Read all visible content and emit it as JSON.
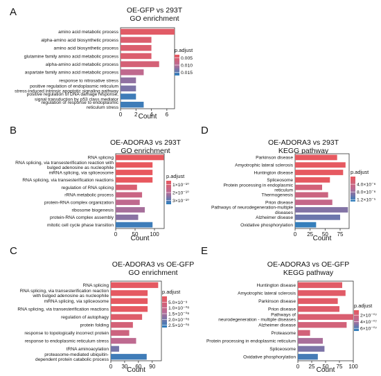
{
  "chart_data": [
    {
      "panel": "A",
      "type": "bar",
      "title": "OE-GFP vs 293T",
      "subtitle": "GO enrichment",
      "xlabel": "Count",
      "xlim": [
        0,
        7
      ],
      "xticks": [
        0,
        2,
        4,
        6
      ],
      "categories": [
        "amino acid metabolic process",
        "alpha-amino acid biosynthetic process",
        "amino acid biosynthetic process",
        "glutamine family amino acid metabolic process",
        "alpha-amino acid metabolic process",
        "aspartate family amino acid metabolic process",
        "response to nitrosative stress",
        "positive regulation of endoplasmic reticulum\nstress-induced intrinsic apoptotic signaling pathway",
        "positive regulation of DNA damage response,\nsignal transduction by p53 class mediator",
        "regulation of response to endoplasmic\nreticulum stress"
      ],
      "values": [
        7,
        4,
        4,
        4,
        5,
        3,
        2,
        2,
        2,
        3
      ],
      "padjust": [
        0.004,
        0.005,
        0.005,
        0.005,
        0.006,
        0.009,
        0.012,
        0.013,
        0.016,
        0.016
      ],
      "legend": {
        "title": "p.adjust",
        "labels": [
          "0.005",
          "0.010",
          "0.015"
        ],
        "values": [
          0.005,
          0.01,
          0.015
        ],
        "range": [
          0.003,
          0.017
        ]
      }
    },
    {
      "panel": "B",
      "type": "bar",
      "title": "OE-ADORA3 vs 293T",
      "subtitle": "GO enrichment",
      "xlabel": "Count",
      "xlim": [
        0,
        125
      ],
      "xticks": [
        0,
        50,
        100
      ],
      "categories": [
        "RNA splicing",
        "RNA splicing, via transesterification reaction with\nbulged adenosine as nucleophile",
        "mRNA splicing, via spliceosome",
        "RNA splicing, via transesterification reactions",
        "regulation of RNA splicing",
        "rRNA metabolic process",
        "protein-RNA complex organization",
        "ribosome biogenesis",
        "protein-RNA complex assembly",
        "mitotic cell cycle phase transition"
      ],
      "values": [
        124,
        95,
        95,
        95,
        55,
        68,
        62,
        75,
        58,
        95
      ],
      "padjust": [
        1e-20,
        1e-18,
        1e-18,
        1e-18,
        1e-10,
        1.5e-10,
        1.8e-10,
        2.2e-10,
        2.5e-10,
        3.3e-10
      ],
      "legend": {
        "title": "p.adjust",
        "labels": [
          "1×10⁻¹⁰",
          "2×10⁻¹⁰",
          "3×10⁻¹⁰"
        ],
        "values": [
          1e-10,
          2e-10,
          3e-10
        ],
        "range": [
          5e-11,
          3.5e-10
        ]
      }
    },
    {
      "panel": "D",
      "type": "bar",
      "title": "OE-ADORA3 vs 293T",
      "subtitle": "KEGG pathway",
      "xlabel": "Count",
      "xlim": [
        0,
        90
      ],
      "xticks": [
        0,
        25,
        50,
        75
      ],
      "categories": [
        "Parkinson disease",
        "Amyotrophic lateral sclerosis",
        "Huntington disease",
        "Spliceosome",
        "Protein processing in endoplasmic\nreticulum",
        "Thermogenesis",
        "Prion disease",
        "Pathways of neurodegeneration-multiple\ndiseases",
        "Alzheimer disease",
        "Oxidative phosphorylation"
      ],
      "values": [
        70,
        84,
        80,
        58,
        45,
        55,
        62,
        88,
        75,
        35
      ],
      "padjust": [
        2e-07,
        3e-07,
        3e-07,
        4e-07,
        3e-06,
        4e-06,
        5e-06,
        9e-06,
        1e-05,
        1.25e-05
      ],
      "legend": {
        "title": "p.adjust",
        "labels": [
          "4.0×10⁻⁶",
          "8.0×10⁻⁶",
          "1.2×10⁻⁵"
        ],
        "values": [
          4e-06,
          8e-06,
          1.2e-05
        ],
        "range": [
          0,
          1.3e-05
        ]
      }
    },
    {
      "panel": "C",
      "type": "bar",
      "title": "OE-ADORA3 vs OE-GFP",
      "subtitle": "GO enrichment",
      "xlabel": "Count",
      "xlim": [
        0,
        110
      ],
      "xticks": [
        0,
        30,
        60,
        90
      ],
      "categories": [
        "RNA splicing",
        "RNA splicing, via transesterification reaction\nwith bulged adenosine as nucleophile",
        "mRNA splicing, via spliceosome",
        "RNA splicing, via transesterification reactions",
        "regulation of autophagy",
        "protein folding",
        "response to topologically incorrect protein",
        "response to endoplasmic reticulum stress",
        "tRNA aminoacylation",
        "proteasome-mediated ubiquitin-\ndependent protein catabolic process"
      ],
      "values": [
        103,
        80,
        80,
        80,
        68,
        48,
        40,
        55,
        18,
        78
      ],
      "padjust": [
        1e-09,
        1e-09,
        1e-09,
        1e-09,
        3e-09,
        6e-09,
        8e-09,
        1.2e-08,
        2e-08,
        2.5e-08
      ],
      "legend": {
        "title": "p.adjust",
        "labels": [
          "5.0×10⁻⁹",
          "1.0×10⁻⁰⁸",
          "1.5×10⁻⁰⁸",
          "2.0×10⁻⁰⁸",
          "2.5×10⁻⁰⁸"
        ],
        "values": [
          5e-09,
          1e-08,
          1.5e-08,
          2e-08,
          2.5e-08
        ],
        "range": [
          0,
          2.7e-08
        ]
      }
    },
    {
      "panel": "E",
      "type": "bar",
      "title": "OE-ADORA3 vs OE-GFP",
      "subtitle": "KEGG pathway",
      "xlabel": "Count",
      "xlim": [
        0,
        100
      ],
      "xticks": [
        0,
        25,
        50,
        75,
        100
      ],
      "categories": [
        "Huntington disease",
        "Amyotrophic lateral sclerosis",
        "Parkinson disease",
        "Prion disease",
        "Pathways of\nneurodegeneration - multiple diseases",
        "Alzheimer disease",
        "Proteasome",
        "Protein processing in endoplasmic reticulum",
        "Spliceosome",
        "Oxidative phosphorylation"
      ],
      "values": [
        80,
        86,
        72,
        75,
        100,
        88,
        22,
        45,
        48,
        36
      ],
      "padjust": [
        1e-07,
        1e-07,
        1e-07,
        1.2e-07,
        1.5e-07,
        2e-07,
        2e-07,
        4e-07,
        5e-07,
        6.2e-07
      ],
      "legend": {
        "title": "p.adjust",
        "labels": [
          "2×10⁻⁰⁷",
          "4×10⁻⁰⁷",
          "6×10⁻⁰⁷"
        ],
        "values": [
          2e-07,
          4e-07,
          6e-07
        ],
        "range": [
          5e-08,
          6.8e-07
        ]
      }
    }
  ],
  "colors": {
    "low_padjust": "#e8585e",
    "high_padjust": "#2a7fbe",
    "mid": "#b96c96"
  }
}
